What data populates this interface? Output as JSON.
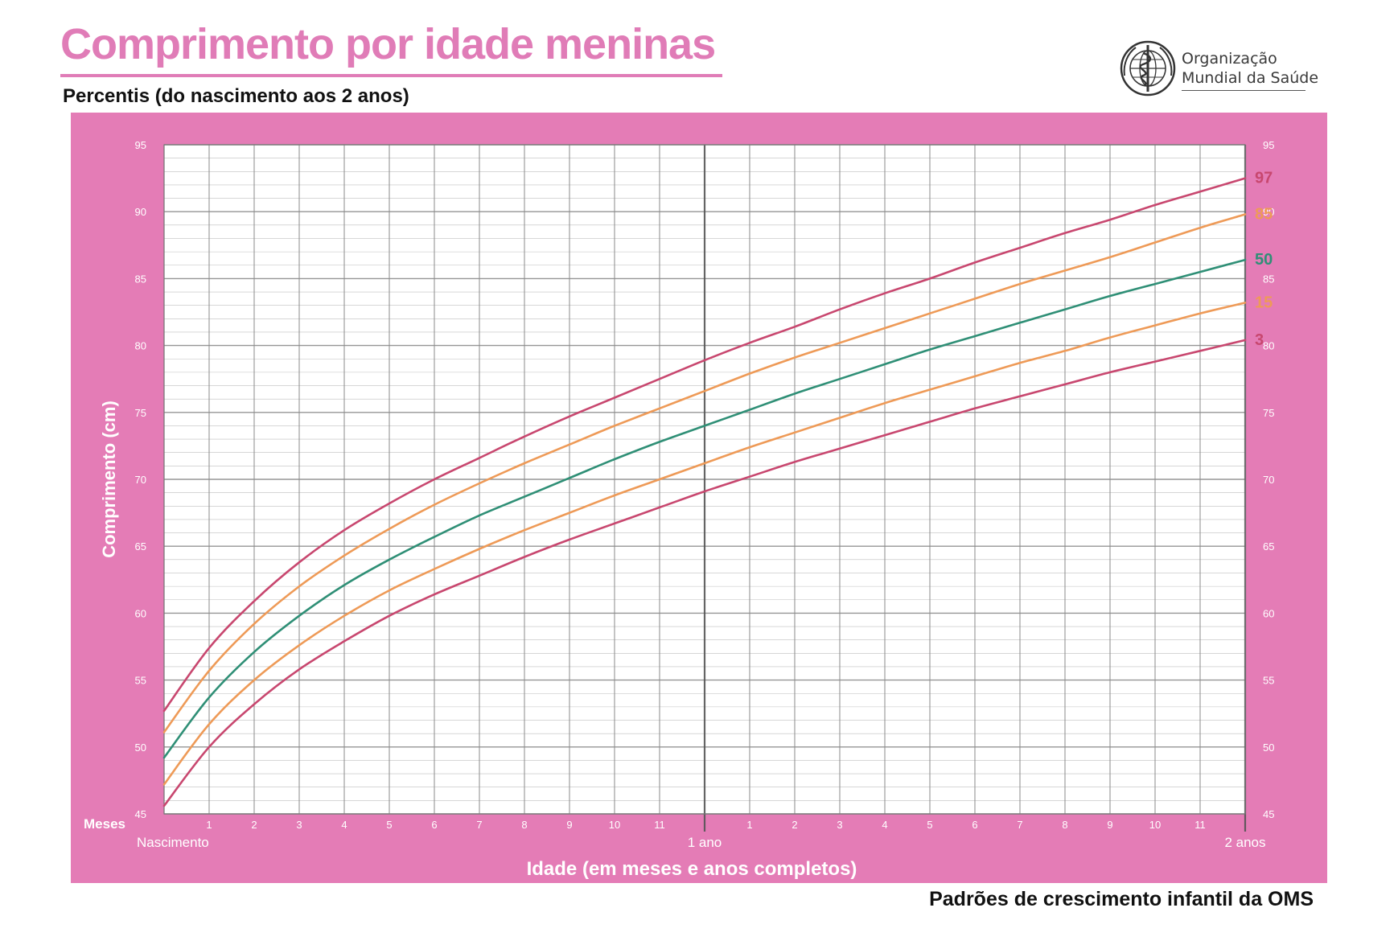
{
  "title": "Comprimento por idade meninas",
  "subtitle": "Percentis (do nascimento aos 2 anos)",
  "logo": {
    "line1": "Organização",
    "line2": "Mundial da Saúde",
    "icon": "who-emblem-icon"
  },
  "footer": "Padrões de crescimento infantil da OMS",
  "colors": {
    "frame": "#e47cb6",
    "plot_bg": "#ffffff",
    "grid": "#8a8a8a",
    "title": "#e07cb7",
    "p97": "#c8476f",
    "p85": "#ee9a57",
    "p50": "#2f8f76",
    "p15": "#ee9a57",
    "p3": "#c8476f"
  },
  "chart_data": {
    "type": "line",
    "xlabel": "Idade (em meses e anos completos)",
    "ylabel": "Comprimento (cm)",
    "x_unit_label": "Meses",
    "xlim": [
      0,
      24
    ],
    "ylim": [
      45,
      95
    ],
    "y_ticks": [
      45,
      50,
      55,
      60,
      65,
      70,
      75,
      80,
      85,
      90,
      95
    ],
    "x_tick_labels": [
      "1",
      "2",
      "3",
      "4",
      "5",
      "6",
      "7",
      "8",
      "9",
      "10",
      "11",
      "1",
      "2",
      "3",
      "4",
      "5",
      "6",
      "7",
      "8",
      "9",
      "10",
      "11"
    ],
    "x_major_labels": [
      {
        "x": 0,
        "label": "Nascimento"
      },
      {
        "x": 12,
        "label": "1 ano"
      },
      {
        "x": 24,
        "label": "2 anos"
      }
    ],
    "grid": true,
    "x": [
      0,
      1,
      2,
      3,
      4,
      5,
      6,
      7,
      8,
      9,
      10,
      11,
      12,
      13,
      14,
      15,
      16,
      17,
      18,
      19,
      20,
      21,
      22,
      23,
      24
    ],
    "series": [
      {
        "name": "97",
        "color_key": "p97",
        "values": [
          52.7,
          57.4,
          60.9,
          63.8,
          66.2,
          68.2,
          70.0,
          71.6,
          73.2,
          74.7,
          76.1,
          77.5,
          78.9,
          80.2,
          81.4,
          82.7,
          83.9,
          85.0,
          86.2,
          87.3,
          88.4,
          89.4,
          90.5,
          91.5,
          92.5
        ]
      },
      {
        "name": "85",
        "color_key": "p85",
        "values": [
          51.1,
          55.7,
          59.2,
          62.0,
          64.3,
          66.3,
          68.1,
          69.7,
          71.2,
          72.6,
          74.0,
          75.3,
          76.6,
          77.9,
          79.1,
          80.2,
          81.3,
          82.4,
          83.5,
          84.6,
          85.6,
          86.6,
          87.7,
          88.8,
          89.8
        ]
      },
      {
        "name": "50",
        "color_key": "p50",
        "values": [
          49.2,
          53.7,
          57.1,
          59.8,
          62.1,
          64.0,
          65.7,
          67.3,
          68.7,
          70.1,
          71.5,
          72.8,
          74.0,
          75.2,
          76.4,
          77.5,
          78.6,
          79.7,
          80.7,
          81.7,
          82.7,
          83.7,
          84.6,
          85.5,
          86.4
        ]
      },
      {
        "name": "15",
        "color_key": "p15",
        "values": [
          47.2,
          51.7,
          55.0,
          57.6,
          59.8,
          61.7,
          63.3,
          64.8,
          66.2,
          67.5,
          68.8,
          70.0,
          71.2,
          72.4,
          73.5,
          74.6,
          75.7,
          76.7,
          77.7,
          78.7,
          79.6,
          80.6,
          81.5,
          82.4,
          83.2
        ]
      },
      {
        "name": "3",
        "color_key": "p3",
        "values": [
          45.6,
          50.0,
          53.2,
          55.8,
          57.9,
          59.8,
          61.4,
          62.8,
          64.2,
          65.5,
          66.7,
          67.9,
          69.1,
          70.2,
          71.3,
          72.3,
          73.3,
          74.3,
          75.3,
          76.2,
          77.1,
          78.0,
          78.8,
          79.6,
          80.4
        ]
      }
    ]
  }
}
